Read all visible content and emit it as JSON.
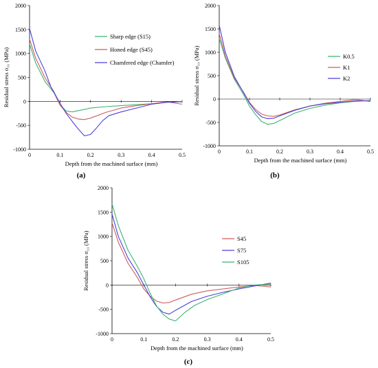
{
  "chart_data": [
    {
      "type": "line",
      "panel_label": "(a)",
      "xlabel": "Depth from the machined surface (mm)",
      "ylabel": "Residual stress σ₁₁ (MPa)",
      "xlim": [
        0,
        0.5
      ],
      "ylim": [
        -1000,
        2000
      ],
      "xticks": [
        "0",
        "0.1",
        "0.2",
        "0.3",
        "0.4",
        "0.5"
      ],
      "yticks": [
        "-1000",
        "-500",
        "0",
        "500",
        "1000",
        "1500",
        "2000"
      ],
      "grid": false,
      "legend_position": "center-right",
      "series": [
        {
          "name": "Sharp edge (S15)",
          "color": "#3cb371",
          "x": [
            0,
            0.02,
            0.05,
            0.08,
            0.1,
            0.12,
            0.14,
            0.17,
            0.2,
            0.25,
            0.3,
            0.35,
            0.4,
            0.45,
            0.5
          ],
          "y": [
            1200,
            800,
            420,
            180,
            -80,
            -200,
            -220,
            -180,
            -140,
            -110,
            -90,
            -70,
            -50,
            -20,
            0
          ]
        },
        {
          "name": "Honed edge (S45)",
          "color": "#cd5c5c",
          "x": [
            0,
            0.02,
            0.05,
            0.08,
            0.1,
            0.12,
            0.14,
            0.16,
            0.18,
            0.2,
            0.25,
            0.3,
            0.35,
            0.4,
            0.45,
            0.5
          ],
          "y": [
            1300,
            900,
            500,
            200,
            -80,
            -230,
            -330,
            -370,
            -380,
            -350,
            -230,
            -140,
            -90,
            -50,
            -10,
            -60
          ]
        },
        {
          "name": "Chamfered edge (Chamfer)",
          "color": "#4b3fd9",
          "x": [
            0,
            0.02,
            0.05,
            0.07,
            0.1,
            0.12,
            0.14,
            0.16,
            0.18,
            0.2,
            0.22,
            0.24,
            0.26,
            0.3,
            0.35,
            0.4,
            0.45,
            0.5
          ],
          "y": [
            1520,
            1050,
            640,
            300,
            -40,
            -250,
            -420,
            -580,
            -720,
            -690,
            -550,
            -400,
            -300,
            -220,
            -140,
            -60,
            -20,
            -10
          ]
        }
      ]
    },
    {
      "type": "line",
      "panel_label": "(b)",
      "xlabel": "Depth from the machined surface (mm)",
      "ylabel": "Residual stress σ₁₁ (MPa)",
      "xlim": [
        0,
        0.5
      ],
      "ylim": [
        -1000,
        2000
      ],
      "xticks": [
        "0",
        "0.1",
        "0.2",
        "0.3",
        "0.4",
        "0.5"
      ],
      "yticks": [
        "-1000",
        "-500",
        "0",
        "500",
        "1000",
        "1500",
        "2000"
      ],
      "grid": false,
      "legend_position": "center-right",
      "series": [
        {
          "name": "K0.5",
          "color": "#3cb371",
          "x": [
            0,
            0.02,
            0.05,
            0.08,
            0.1,
            0.12,
            0.14,
            0.16,
            0.18,
            0.2,
            0.25,
            0.3,
            0.35,
            0.4,
            0.45,
            0.5
          ],
          "y": [
            1300,
            880,
            420,
            100,
            -150,
            -330,
            -480,
            -540,
            -520,
            -460,
            -300,
            -200,
            -130,
            -80,
            -50,
            -30
          ]
        },
        {
          "name": "K1",
          "color": "#cd5c5c",
          "x": [
            0,
            0.02,
            0.05,
            0.08,
            0.1,
            0.12,
            0.14,
            0.16,
            0.18,
            0.2,
            0.25,
            0.3,
            0.35,
            0.4,
            0.45,
            0.5
          ],
          "y": [
            1400,
            920,
            450,
            150,
            -70,
            -220,
            -320,
            -360,
            -370,
            -340,
            -230,
            -150,
            -90,
            -50,
            -10,
            -50
          ]
        },
        {
          "name": "K2",
          "color": "#4b3fd9",
          "x": [
            0,
            0.02,
            0.05,
            0.08,
            0.1,
            0.12,
            0.14,
            0.16,
            0.18,
            0.2,
            0.25,
            0.3,
            0.35,
            0.4,
            0.45,
            0.5
          ],
          "y": [
            1580,
            1000,
            480,
            140,
            -90,
            -260,
            -380,
            -420,
            -410,
            -360,
            -240,
            -150,
            -100,
            -70,
            -40,
            -40
          ]
        }
      ]
    },
    {
      "type": "line",
      "panel_label": "(c)",
      "xlabel": "Depth from the machined surface (mm)",
      "ylabel": "Residual stress σ₁₁ (MPa)",
      "xlim": [
        0,
        0.5
      ],
      "ylim": [
        -1000,
        2000
      ],
      "xticks": [
        "0",
        "0.1",
        "0.2",
        "0.3",
        "0.4",
        "0.5"
      ],
      "yticks": [
        "-1000",
        "-500",
        "0",
        "500",
        "1000",
        "1500",
        "2000"
      ],
      "grid": false,
      "legend_position": "center-right",
      "series": [
        {
          "name": "S45",
          "color": "#cd5c5c",
          "x": [
            0,
            0.02,
            0.05,
            0.08,
            0.1,
            0.12,
            0.14,
            0.16,
            0.18,
            0.2,
            0.25,
            0.3,
            0.35,
            0.4,
            0.45,
            0.5
          ],
          "y": [
            1280,
            880,
            450,
            150,
            -80,
            -230,
            -330,
            -370,
            -360,
            -310,
            -190,
            -120,
            -80,
            -40,
            -10,
            -40
          ]
        },
        {
          "name": "S75",
          "color": "#4b3fd9",
          "x": [
            0,
            0.02,
            0.05,
            0.08,
            0.1,
            0.12,
            0.14,
            0.16,
            0.18,
            0.2,
            0.25,
            0.3,
            0.35,
            0.4,
            0.45,
            0.5
          ],
          "y": [
            1460,
            1000,
            560,
            250,
            0,
            -240,
            -440,
            -560,
            -600,
            -520,
            -340,
            -230,
            -150,
            -80,
            -20,
            40
          ]
        },
        {
          "name": "S105",
          "color": "#3cb371",
          "x": [
            0,
            0.02,
            0.05,
            0.08,
            0.1,
            0.12,
            0.14,
            0.16,
            0.18,
            0.2,
            0.23,
            0.26,
            0.3,
            0.35,
            0.4,
            0.45,
            0.5
          ],
          "y": [
            1670,
            1220,
            720,
            380,
            130,
            -170,
            -430,
            -600,
            -700,
            -740,
            -560,
            -420,
            -300,
            -180,
            -60,
            0,
            20
          ]
        }
      ]
    }
  ]
}
